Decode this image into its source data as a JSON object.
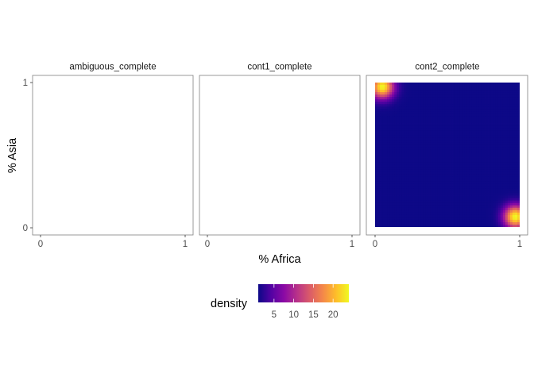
{
  "chart_data": {
    "type": "heatmap",
    "title": "",
    "xlabel": "% Africa",
    "ylabel": "% Asia",
    "xlim": [
      0,
      1
    ],
    "ylim": [
      0,
      1
    ],
    "x_ticks": [
      "0",
      "1"
    ],
    "y_ticks": [
      "0",
      "1"
    ],
    "grid": false,
    "legend_placement": "bottom",
    "facets": [
      {
        "name": "ambiguous_complete",
        "hotspots": []
      },
      {
        "name": "cont1_complete",
        "hotspots": []
      },
      {
        "name": "cont2_complete",
        "hotspots": [
          {
            "x": 0.05,
            "y": 0.97,
            "density": 24
          },
          {
            "x": 0.97,
            "y": 0.07,
            "density": 24
          }
        ]
      }
    ],
    "legend": {
      "title": "density",
      "ticks": [
        5,
        10,
        15,
        20
      ],
      "tick_labels": [
        "5",
        "10",
        "15",
        "20"
      ],
      "range": [
        1,
        24
      ],
      "colormap": [
        "#0d0887",
        "#5302a3",
        "#8b0aa5",
        "#b83289",
        "#db5c68",
        "#f48849",
        "#febd2a",
        "#f0f921"
      ]
    }
  }
}
